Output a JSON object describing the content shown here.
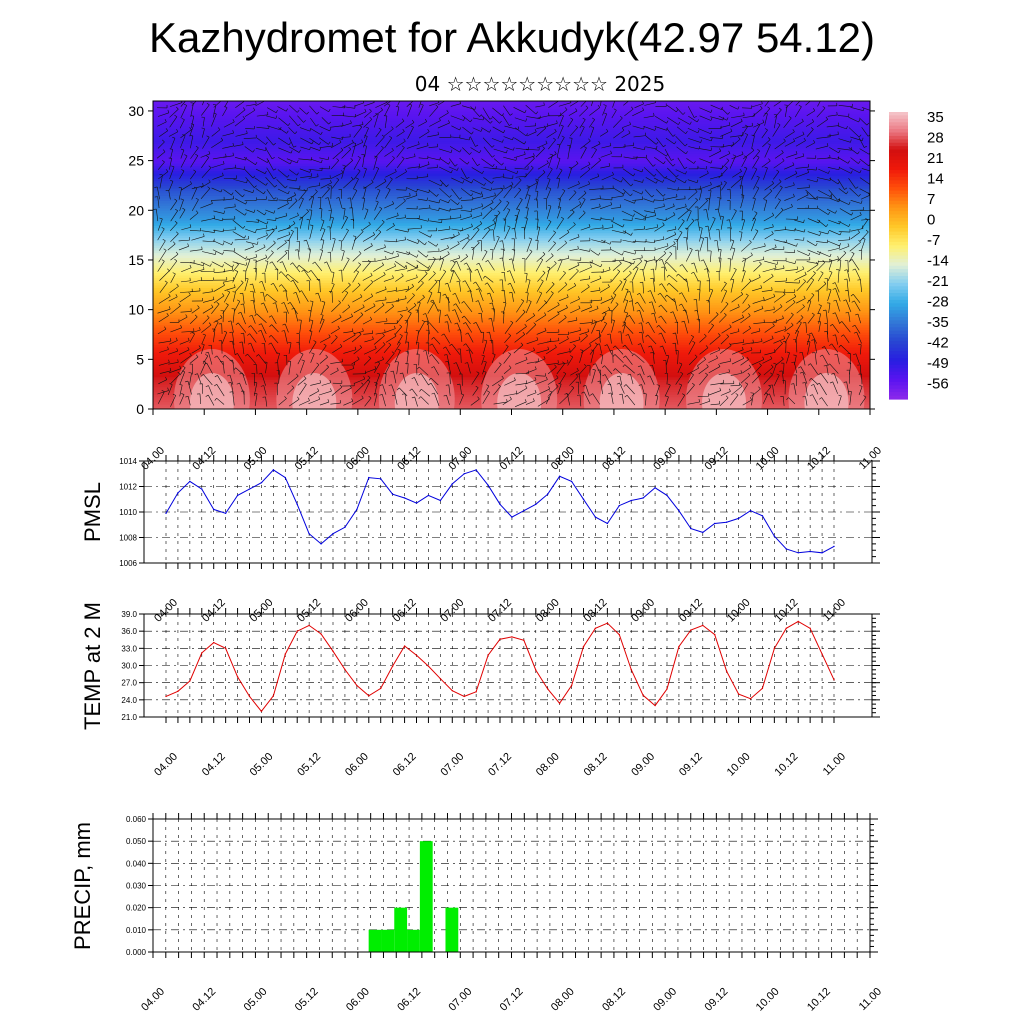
{
  "header": {
    "title": "Kazhydromet for Akkudyk(42.97 54.12)",
    "subtitle": "04 ☆☆☆☆☆☆☆☆☆ 2025"
  },
  "time_ticks": [
    "04.00",
    "04.12",
    "05.00",
    "05.12",
    "06.00",
    "06.12",
    "07.00",
    "07.12",
    "08.00",
    "08.12",
    "09.00",
    "09.12",
    "10.00",
    "10.12",
    "11.00"
  ],
  "chart_data": [
    {
      "type": "heatmap",
      "title": "",
      "xlabel": "",
      "ylabel": "",
      "x": [
        "04.00",
        "04.12",
        "05.00",
        "05.12",
        "06.00",
        "06.12",
        "07.00",
        "07.12",
        "08.00",
        "08.12",
        "09.00",
        "09.12",
        "10.00",
        "10.12",
        "11.00"
      ],
      "ylim": [
        0,
        31
      ],
      "yticks": [
        0,
        5,
        10,
        15,
        20,
        25,
        30
      ],
      "colorbar": {
        "levels": [
          "35",
          "28",
          "21",
          "14",
          "7",
          "0",
          "-7",
          "-14",
          "-21",
          "-28",
          "-35",
          "-42",
          "-49",
          "-56"
        ],
        "range": [
          -63,
          42
        ],
        "placement": "right"
      },
      "temperature_profile": [
        {
          "level": 0,
          "value": 33
        },
        {
          "level": 3,
          "value": 29
        },
        {
          "level": 6,
          "value": 20
        },
        {
          "level": 9,
          "value": 10
        },
        {
          "level": 12,
          "value": 0
        },
        {
          "level": 15,
          "value": -12
        },
        {
          "level": 17,
          "value": -20
        },
        {
          "level": 19,
          "value": -30
        },
        {
          "level": 22,
          "value": -40
        },
        {
          "level": 25,
          "value": -56
        },
        {
          "level": 27,
          "value": -52
        },
        {
          "level": 31,
          "value": -58
        }
      ],
      "overlay": "wind barbs"
    },
    {
      "type": "line",
      "ylabel": "PMSL",
      "ylim": [
        1006,
        1014
      ],
      "yticks": [
        "1006",
        "1008",
        "1010",
        "1012",
        "1014"
      ],
      "grid": true,
      "x": [
        "04.00",
        "04.03",
        "04.06",
        "04.09",
        "04.12",
        "04.15",
        "04.18",
        "04.21",
        "05.00",
        "05.03",
        "05.06",
        "05.09",
        "05.12",
        "05.15",
        "05.18",
        "05.21",
        "06.00",
        "06.03",
        "06.06",
        "06.09",
        "06.12",
        "06.15",
        "06.18",
        "06.21",
        "07.00",
        "07.03",
        "07.06",
        "07.09",
        "07.12",
        "07.15",
        "07.18",
        "07.21",
        "08.00",
        "08.03",
        "08.06",
        "08.09",
        "08.12",
        "08.15",
        "08.18",
        "08.21",
        "09.00",
        "09.03",
        "09.06",
        "09.09",
        "09.12",
        "09.15",
        "09.18",
        "09.21",
        "10.00",
        "10.03",
        "10.06",
        "10.09",
        "10.12",
        "10.15",
        "10.18",
        "10.21",
        "11.00"
      ],
      "series": [
        {
          "color": "#0000dd",
          "values": [
            1009.9,
            1011.5,
            1012.4,
            1011.8,
            1010.2,
            1009.9,
            1011.3,
            1011.8,
            1012.3,
            1013.3,
            1012.7,
            1010.6,
            1008.3,
            1007.5,
            1008.3,
            1008.8,
            1010.2,
            1012.7,
            1012.6,
            1011.4,
            1011.1,
            1010.7,
            1011.3,
            1010.9,
            1012.2,
            1013.0,
            1013.3,
            1012.1,
            1010.6,
            1009.6,
            1010.1,
            1010.6,
            1011.4,
            1012.8,
            1012.4,
            1011.0,
            1009.6,
            1009.1,
            1010.5,
            1010.9,
            1011.1,
            1011.9,
            1011.3,
            1010.1,
            1008.7,
            1008.4,
            1009.1,
            1009.2,
            1009.5,
            1010.1,
            1009.7,
            1008.1,
            1007.1,
            1006.8,
            1006.9,
            1006.8,
            1007.3
          ]
        }
      ]
    },
    {
      "type": "line",
      "ylabel": "TEMP at 2 M",
      "ylim": [
        21,
        39
      ],
      "yticks": [
        "21.0",
        "24.0",
        "27.0",
        "30.0",
        "33.0",
        "36.0",
        "39.0"
      ],
      "grid": true,
      "x": [
        "04.00",
        "04.03",
        "04.06",
        "04.09",
        "04.12",
        "04.15",
        "04.18",
        "04.21",
        "05.00",
        "05.03",
        "05.06",
        "05.09",
        "05.12",
        "05.15",
        "05.18",
        "05.21",
        "06.00",
        "06.03",
        "06.06",
        "06.09",
        "06.12",
        "06.15",
        "06.18",
        "06.21",
        "07.00",
        "07.03",
        "07.06",
        "07.09",
        "07.12",
        "07.15",
        "07.18",
        "07.21",
        "08.00",
        "08.03",
        "08.06",
        "08.09",
        "08.12",
        "08.15",
        "08.18",
        "08.21",
        "09.00",
        "09.03",
        "09.06",
        "09.09",
        "09.12",
        "09.15",
        "09.18",
        "09.21",
        "10.00",
        "10.03",
        "10.06",
        "10.09",
        "10.12",
        "10.15",
        "10.18",
        "10.21",
        "11.00"
      ],
      "series": [
        {
          "color": "#e00000",
          "values": [
            24.6,
            25.5,
            27.3,
            32.2,
            34.0,
            33.0,
            28.0,
            24.6,
            22.0,
            24.7,
            32.0,
            36.0,
            37.0,
            35.5,
            32.5,
            29.3,
            26.5,
            24.7,
            26.0,
            29.9,
            33.4,
            31.8,
            29.9,
            27.7,
            25.6,
            24.6,
            25.4,
            31.8,
            34.6,
            35.0,
            34.4,
            29.2,
            25.9,
            23.4,
            26.5,
            33.3,
            36.5,
            37.4,
            35.4,
            29.3,
            24.8,
            23.0,
            25.9,
            33.3,
            36.2,
            37.0,
            35.4,
            29.0,
            25.0,
            24.2,
            26.0,
            33.0,
            36.5,
            37.7,
            36.5,
            32.0,
            27.5
          ]
        }
      ]
    },
    {
      "type": "bar",
      "ylabel": "PRECIP, mm",
      "ylim": [
        0,
        0.06
      ],
      "yticks": [
        "0.000",
        "0.010",
        "0.020",
        "0.030",
        "0.040",
        "0.050",
        "0.060"
      ],
      "grid": true,
      "categories": [
        "06.00",
        "06.03",
        "06.06",
        "06.09",
        "06.12",
        "06.15",
        "06.18",
        "06.21"
      ],
      "values": [
        0.01,
        0.01,
        0.02,
        0.01,
        0.05,
        0.0,
        0.02,
        0.0
      ],
      "color": "#00ee00"
    }
  ]
}
